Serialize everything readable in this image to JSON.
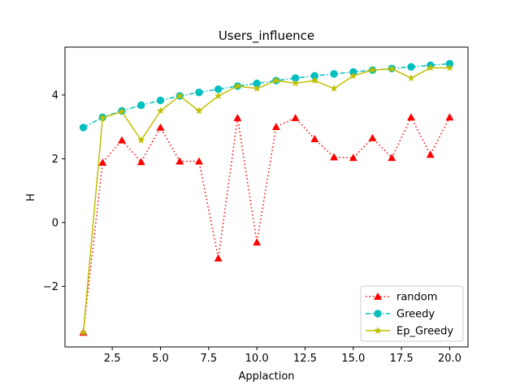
{
  "chart_data": {
    "type": "line",
    "title": "Users_influence",
    "xlabel": "Applaction",
    "ylabel": "H",
    "xlim": [
      0.05,
      20.95
    ],
    "ylim": [
      -3.9,
      5.5
    ],
    "xticks": [
      2.5,
      5.0,
      7.5,
      10.0,
      12.5,
      15.0,
      17.5,
      20.0
    ],
    "xtick_labels": [
      "2.5",
      "5.0",
      "7.5",
      "10.0",
      "12.5",
      "15.0",
      "17.5",
      "20.0"
    ],
    "yticks": [
      -2,
      0,
      2,
      4
    ],
    "ytick_labels": [
      "−2",
      "0",
      "2",
      "4"
    ],
    "grid": false,
    "legend_position": "lower-right",
    "x": [
      1,
      2,
      3,
      4,
      5,
      6,
      7,
      8,
      9,
      10,
      11,
      12,
      13,
      14,
      15,
      16,
      17,
      18,
      19,
      20
    ],
    "series": [
      {
        "name": "random",
        "color": "#ff0000",
        "marker": "triangle",
        "linestyle": "dotted",
        "values": [
          -3.45,
          1.88,
          2.58,
          1.9,
          2.98,
          1.92,
          1.92,
          -1.12,
          3.28,
          -0.62,
          3.0,
          3.28,
          2.62,
          2.05,
          2.03,
          2.65,
          2.03,
          3.3,
          2.13,
          3.3
        ]
      },
      {
        "name": "Greedy",
        "color": "#00bfbf",
        "marker": "circle",
        "linestyle": "dashdot",
        "values": [
          2.98,
          3.3,
          3.5,
          3.68,
          3.83,
          3.97,
          4.08,
          4.18,
          4.28,
          4.36,
          4.45,
          4.53,
          4.6,
          4.66,
          4.72,
          4.78,
          4.83,
          4.88,
          4.93,
          4.98
        ]
      },
      {
        "name": "Ep_Greedy",
        "color": "#bfbf00",
        "marker": "star",
        "linestyle": "solid",
        "values": [
          -3.45,
          3.28,
          3.48,
          2.58,
          3.5,
          3.97,
          3.5,
          3.97,
          4.28,
          4.2,
          4.45,
          4.37,
          4.45,
          4.2,
          4.6,
          4.78,
          4.82,
          4.53,
          4.85,
          4.85
        ]
      }
    ]
  }
}
